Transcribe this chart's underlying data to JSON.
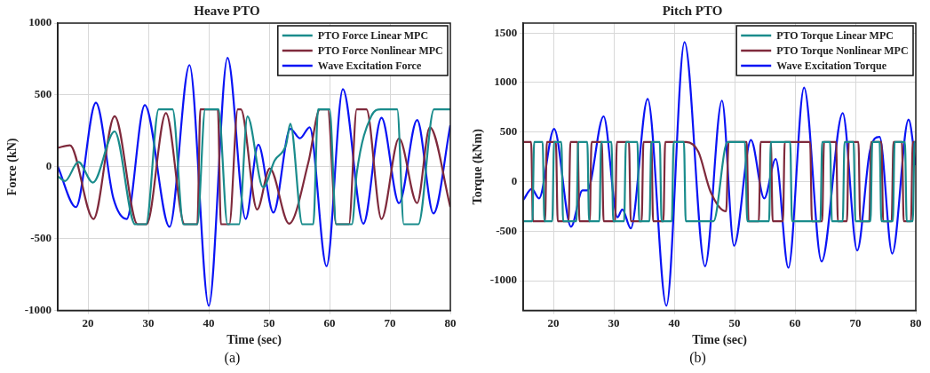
{
  "chart_data": [
    {
      "type": "line",
      "title": "Heave PTO",
      "xlabel": "Time (sec)",
      "ylabel": "Force (kN)",
      "xlim": [
        15,
        80
      ],
      "xticks": [
        20,
        30,
        40,
        50,
        60,
        70,
        80
      ],
      "ylim": [
        -1000,
        1000
      ],
      "yticks": [
        -1000,
        -500,
        0,
        500,
        1000
      ],
      "grid": true,
      "legend": "top right",
      "annotations": [
        "(a)"
      ],
      "series": [
        {
          "name": "PTO Force Linear MPC",
          "color": "#1a8c8c",
          "x": [
            15,
            16.2,
            18.4,
            20.8,
            24.4,
            27.8,
            29.6,
            31.7,
            34,
            35.8,
            38.1,
            39.4,
            41.6,
            43.1,
            45,
            46.4,
            49,
            50.9,
            52.8,
            53.5,
            55.5,
            57.3,
            58.1,
            60,
            61.1,
            63.7,
            64.5,
            66.9,
            68.5,
            71.2,
            72.3,
            74.7,
            77.3,
            80
          ],
          "values": [
            -66,
            -99,
            33,
            -110,
            246,
            -400,
            -400,
            400,
            400,
            -400,
            -400,
            400,
            400,
            -400,
            -400,
            350,
            -143,
            44,
            154,
            300,
            -400,
            -400,
            400,
            400,
            -400,
            -400,
            -44,
            352,
            400,
            400,
            -400,
            -400,
            400,
            400
          ]
        },
        {
          "name": "PTO Force Nonlinear MPC",
          "color": "#7f2a3c",
          "x": [
            15,
            17,
            20.9,
            24.4,
            28.2,
            29.7,
            32.9,
            36,
            38.1,
            38.6,
            41.5,
            42,
            43.4,
            44.8,
            45.3,
            48,
            50.1,
            53.3,
            56.5,
            58.4,
            59.7,
            61.1,
            63.2,
            64.5,
            66.1,
            68.6,
            71.5,
            74.5,
            76.6,
            80
          ],
          "values": [
            132,
            150,
            -363,
            352,
            -400,
            -400,
            374,
            -400,
            -400,
            400,
            400,
            -400,
            -400,
            400,
            400,
            -297,
            -11,
            -396,
            33,
            400,
            400,
            -400,
            -400,
            400,
            400,
            -363,
            198,
            -253,
            275,
            -280
          ]
        },
        {
          "name": "Wave Excitation Force",
          "color": "#0a14f5",
          "x": [
            15,
            18,
            21.3,
            24.2,
            26.4,
            29.4,
            33.5,
            36.8,
            40,
            43.1,
            46.1,
            48.2,
            50.7,
            53.5,
            55.1,
            56.7,
            59.5,
            62.2,
            65.6,
            68.6,
            71.5,
            74.5,
            77.2,
            80
          ],
          "values": [
            0,
            -281,
            446,
            -220,
            -363,
            429,
            -418,
            708,
            -967,
            758,
            -363,
            154,
            -319,
            264,
            198,
            275,
            -692,
            540,
            -396,
            341,
            -253,
            325,
            -325,
            290
          ]
        }
      ]
    },
    {
      "type": "line",
      "title": "Pitch PTO",
      "xlabel": "Time (sec)",
      "ylabel": "Torque (kNm)",
      "xlim": [
        15,
        80
      ],
      "xticks": [
        20,
        30,
        40,
        50,
        60,
        70,
        80
      ],
      "ylim": [
        -1300,
        1600
      ],
      "yticks": [
        -1000,
        -500,
        0,
        500,
        1000,
        1500
      ],
      "grid": true,
      "legend": "top right",
      "annotations": [
        "(b)"
      ],
      "series": [
        {
          "name": "PTO Torque Linear MPC",
          "color": "#1a8c8c",
          "x": [
            15,
            16.5,
            16.8,
            18.2,
            18.5,
            19.8,
            20.1,
            21.3,
            21.6,
            23.8,
            24.1,
            25.6,
            25.9,
            27.6,
            27.9,
            29.6,
            29.9,
            31.7,
            32,
            33.9,
            34.2,
            35.9,
            36.2,
            37.6,
            37.9,
            39.6,
            39.9,
            41.6,
            41.9,
            46.5,
            48.8,
            51.7,
            52.1,
            55.7,
            56,
            59.2,
            59.5,
            64.2,
            64.5,
            65.8,
            66.1,
            67.9,
            68.2,
            69.7,
            70,
            72.5,
            72.8,
            74,
            74.3,
            76.2,
            76.5,
            78.2,
            78.5,
            79.5,
            79.8,
            80
          ],
          "values": [
            -400,
            -400,
            400,
            400,
            -400,
            -400,
            400,
            400,
            -400,
            -400,
            400,
            400,
            -400,
            -400,
            400,
            400,
            -400,
            -400,
            400,
            400,
            -400,
            -400,
            400,
            400,
            -400,
            -400,
            400,
            400,
            -400,
            -400,
            400,
            400,
            -400,
            -400,
            400,
            400,
            -400,
            -400,
            400,
            400,
            -400,
            -400,
            400,
            400,
            -400,
            -400,
            400,
            400,
            -400,
            -400,
            400,
            400,
            -400,
            -400,
            400,
            400
          ]
        },
        {
          "name": "PTO Torque Nonlinear MPC",
          "color": "#7f2a3c",
          "x": [
            15,
            16.3,
            16.6,
            18.6,
            18.9,
            20.4,
            20.7,
            22.5,
            22.8,
            24,
            24.3,
            26,
            26.3,
            28,
            28.3,
            30.2,
            30.5,
            32.5,
            32.8,
            34.6,
            34.9,
            36.2,
            36.5,
            38.2,
            38.5,
            42,
            44,
            46,
            48.6,
            49,
            52,
            52.3,
            54,
            54.3,
            56,
            56.3,
            58,
            58.3,
            62.5,
            62.8,
            64.5,
            64.8,
            66.8,
            67.1,
            68.6,
            68.9,
            70.5,
            70.8,
            72.3,
            72.6,
            74.3,
            74.6,
            76,
            76.3,
            77.7,
            78,
            79.2,
            79.5,
            80
          ],
          "values": [
            400,
            400,
            -400,
            -400,
            400,
            400,
            -400,
            -400,
            400,
            400,
            -400,
            -400,
            400,
            400,
            -400,
            -400,
            400,
            400,
            -400,
            -400,
            400,
            400,
            -400,
            -400,
            400,
            400,
            300,
            -100,
            -300,
            400,
            400,
            -400,
            -400,
            400,
            400,
            -400,
            -400,
            400,
            400,
            -400,
            -400,
            400,
            400,
            -400,
            -400,
            400,
            400,
            -400,
            -400,
            400,
            400,
            -400,
            -400,
            400,
            400,
            -400,
            -400,
            400,
            400
          ]
        },
        {
          "name": "Wave Excitation Torque",
          "color": "#0a14f5",
          "x": [
            15,
            16.4,
            17.6,
            20.1,
            22.9,
            24.8,
            25.6,
            28.3,
            30.6,
            31.4,
            32.8,
            35.6,
            38.7,
            41.7,
            45.1,
            47.9,
            49.9,
            52.7,
            54.9,
            56.8,
            58.9,
            61.5,
            64.4,
            67.9,
            70.3,
            72.4,
            74,
            76.1,
            78.8,
            80
          ],
          "values": [
            -185,
            -73,
            -169,
            532,
            -455,
            -89,
            -89,
            659,
            -360,
            -280,
            -471,
            834,
            -1252,
            1408,
            -854,
            818,
            -647,
            420,
            -169,
            229,
            -869,
            950,
            -806,
            691,
            -694,
            309,
            452,
            -726,
            627,
            166
          ]
        }
      ]
    }
  ]
}
